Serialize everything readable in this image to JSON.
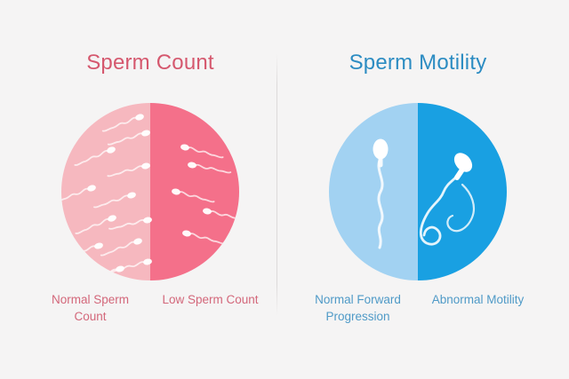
{
  "panels": [
    {
      "id": "sperm-count",
      "title": "Sperm Count",
      "left_label": "Normal Sperm Count",
      "right_label": "Low Sperm Count",
      "normal_half": {
        "color": "#f6b8bf",
        "sperm": [
          [
            88,
            16,
            -18
          ],
          [
            95,
            34,
            -14
          ],
          [
            56,
            53,
            -20
          ],
          [
            95,
            71,
            -12
          ],
          [
            34,
            96,
            -18
          ],
          [
            79,
            104,
            -15
          ],
          [
            57,
            130,
            -20
          ],
          [
            97,
            132,
            -10
          ],
          [
            42,
            161,
            -14
          ],
          [
            86,
            156,
            -18
          ],
          [
            97,
            179,
            -12
          ],
          [
            66,
            187,
            -16
          ]
        ]
      },
      "low_half": {
        "color": "#f4708a",
        "sperm": [
          [
            139,
            50,
            -12
          ],
          [
            147,
            70,
            -8
          ],
          [
            129,
            100,
            -12
          ],
          [
            164,
            122,
            -10
          ],
          [
            141,
            147,
            -12
          ]
        ]
      }
    },
    {
      "id": "sperm-motility",
      "title": "Sperm Motility",
      "left_label": "Normal Forward Progression",
      "right_label": "Abnormal Motility",
      "normal_half": {
        "color": "#a2d2f2"
      },
      "abnormal_half": {
        "color": "#19a0e2"
      }
    }
  ],
  "colors": {
    "background": "#f5f4f4",
    "divider": "#dddada",
    "count_title": "#d5586e",
    "count_label": "#d3677a",
    "motility_title": "#2c8cc2",
    "motility_label": "#4f9ac7",
    "pink_light": "#f6b8bf",
    "pink_dark": "#f4708a",
    "blue_light": "#a2d2f2",
    "blue_dark": "#19a0e2",
    "sperm": "#ffffff"
  }
}
